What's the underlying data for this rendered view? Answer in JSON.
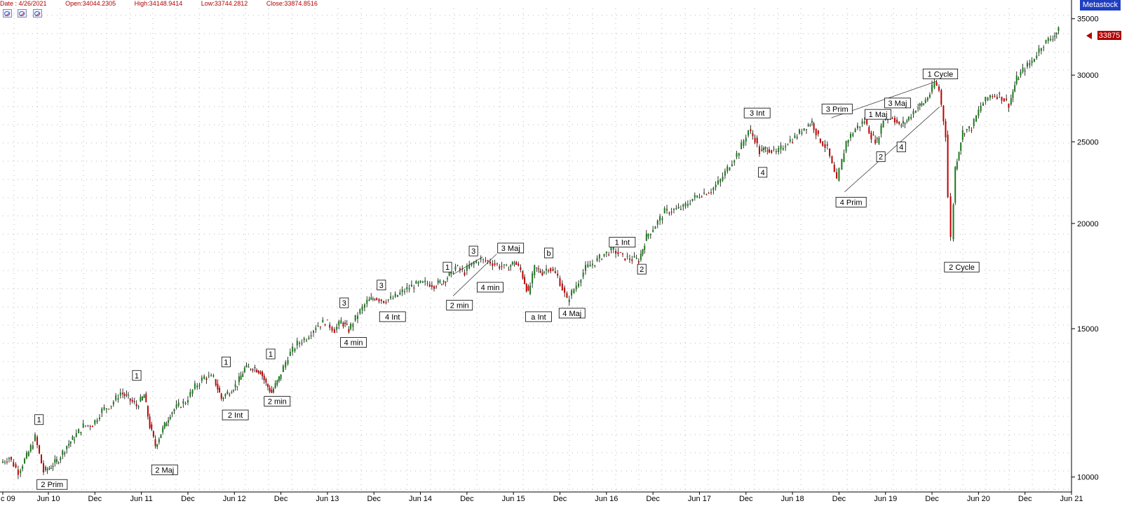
{
  "header": {
    "date": "Date : 4/26/2021",
    "open": "Open:34044.2305",
    "high": "High:34148.9414",
    "low": "Low:33744.2812",
    "close": "Close:33874.8516"
  },
  "brand": "Metastock",
  "price_tag": "33875",
  "colors": {
    "up": "#1a7a1a",
    "down": "#c00000",
    "label_text": "#b00000",
    "grid": "#b8b8b8",
    "brand_bg": "#1f3fbf"
  },
  "chart_data": {
    "type": "line",
    "title": "",
    "xlabel": "",
    "ylabel": "",
    "y_scale": "log",
    "ylim": [
      9600,
      36000
    ],
    "xlim": [
      2009.96,
      2021.45
    ],
    "grid": true,
    "x_ticks": [
      {
        "t": 2009.96,
        "label": "c 09"
      },
      {
        "t": 2010.45,
        "label": "Jun 10"
      },
      {
        "t": 2010.95,
        "label": "Dec"
      },
      {
        "t": 2011.45,
        "label": "Jun 11"
      },
      {
        "t": 2011.95,
        "label": "Dec"
      },
      {
        "t": 2012.45,
        "label": "Jun 12"
      },
      {
        "t": 2012.95,
        "label": "Dec"
      },
      {
        "t": 2013.45,
        "label": "Jun 13"
      },
      {
        "t": 2013.95,
        "label": "Dec"
      },
      {
        "t": 2014.45,
        "label": "Jun 14"
      },
      {
        "t": 2014.95,
        "label": "Dec"
      },
      {
        "t": 2015.45,
        "label": "Jun 15"
      },
      {
        "t": 2015.95,
        "label": "Dec"
      },
      {
        "t": 2016.45,
        "label": "Jun 16"
      },
      {
        "t": 2016.95,
        "label": "Dec"
      },
      {
        "t": 2017.45,
        "label": "Jun 17"
      },
      {
        "t": 2017.95,
        "label": "Dec"
      },
      {
        "t": 2018.45,
        "label": "Jun 18"
      },
      {
        "t": 2018.95,
        "label": "Dec"
      },
      {
        "t": 2019.45,
        "label": "Jun 19"
      },
      {
        "t": 2019.95,
        "label": "Dec"
      },
      {
        "t": 2020.45,
        "label": "Jun 20"
      },
      {
        "t": 2020.95,
        "label": "Dec"
      },
      {
        "t": 2021.45,
        "label": "Jun 21"
      }
    ],
    "y_ticks": [
      {
        "v": 10000,
        "label": "10000"
      },
      {
        "v": 15000,
        "label": "15000"
      },
      {
        "v": 20000,
        "label": "20000"
      },
      {
        "v": 25000,
        "label": "25000"
      },
      {
        "v": 30000,
        "label": "30000"
      },
      {
        "v": 35000,
        "label": "35000"
      }
    ],
    "series": [
      {
        "x": [
          2009.96,
          2010.05,
          2010.15,
          2010.26,
          2010.33,
          2010.42,
          2010.5,
          2010.58,
          2010.67,
          2010.75,
          2010.85,
          2010.95,
          2011.05,
          2011.15,
          2011.25,
          2011.33,
          2011.42,
          2011.5,
          2011.56,
          2011.62,
          2011.7,
          2011.78,
          2011.85,
          2011.95,
          2012.05,
          2012.15,
          2012.25,
          2012.33,
          2012.42,
          2012.5,
          2012.58,
          2012.67,
          2012.75,
          2012.81,
          2012.87,
          2012.95,
          2013.05,
          2013.15,
          2013.25,
          2013.35,
          2013.45,
          2013.55,
          2013.62,
          2013.7,
          2013.8,
          2013.9,
          2013.98,
          2014.08,
          2014.18,
          2014.28,
          2014.38,
          2014.45,
          2014.55,
          2014.62,
          2014.7,
          2014.78,
          2014.85,
          2014.95,
          2015.0,
          2015.1,
          2015.2,
          2015.3,
          2015.4,
          2015.48,
          2015.55,
          2015.63,
          2015.7,
          2015.78,
          2015.85,
          2015.95,
          2016.05,
          2016.15,
          2016.25,
          2016.35,
          2016.45,
          2016.55,
          2016.65,
          2016.75,
          2016.82,
          2016.9,
          2017.0,
          2017.1,
          2017.2,
          2017.3,
          2017.4,
          2017.5,
          2017.6,
          2017.7,
          2017.8,
          2017.9,
          2018.0,
          2018.07,
          2018.12,
          2018.2,
          2018.3,
          2018.4,
          2018.5,
          2018.6,
          2018.68,
          2018.75,
          2018.85,
          2018.95,
          2018.98,
          2019.05,
          2019.15,
          2019.25,
          2019.32,
          2019.38,
          2019.45,
          2019.55,
          2019.62,
          2019.7,
          2019.8,
          2019.88,
          2019.95,
          2020.0,
          2020.05,
          2020.12,
          2020.15,
          2020.18,
          2020.22,
          2020.3,
          2020.4,
          2020.5,
          2020.6,
          2020.7,
          2020.8,
          2020.88,
          2020.95,
          2021.05,
          2021.15,
          2021.25,
          2021.33
        ],
        "values": [
          10400,
          10550,
          10150,
          10700,
          11150,
          10150,
          10300,
          10500,
          10900,
          11150,
          11500,
          11550,
          12000,
          12200,
          12600,
          12400,
          12150,
          12500,
          11500,
          10900,
          11400,
          11900,
          12100,
          12300,
          12800,
          13150,
          13100,
          12400,
          12650,
          12900,
          13450,
          13500,
          13350,
          12900,
          12600,
          13100,
          13900,
          14400,
          14650,
          15100,
          15300,
          14950,
          15300,
          14950,
          15600,
          16150,
          16350,
          16200,
          16300,
          16600,
          16850,
          16950,
          17000,
          16900,
          17050,
          17350,
          17750,
          17500,
          17800,
          18100,
          18050,
          17850,
          17700,
          18000,
          17600,
          16500,
          17700,
          17500,
          17750,
          17300,
          16200,
          16900,
          17700,
          18000,
          18400,
          18600,
          18250,
          18150,
          18100,
          19300,
          19900,
          20650,
          20750,
          20900,
          21400,
          21700,
          21900,
          22500,
          23500,
          24400,
          25800,
          25200,
          24300,
          24600,
          24200,
          24900,
          25300,
          26000,
          26400,
          25300,
          24500,
          22400,
          23100,
          25000,
          25900,
          26500,
          25400,
          25000,
          26600,
          26800,
          26100,
          26500,
          27400,
          27800,
          28500,
          29400,
          28800,
          25500,
          21500,
          19200,
          23300,
          25700,
          26000,
          27600,
          28400,
          28400,
          27700,
          29700,
          30400,
          31200,
          32500,
          33200,
          33875
        ]
      }
    ],
    "annotations": [
      {
        "text": "1",
        "t": 2010.35,
        "v": 11700,
        "box": true
      },
      {
        "text": "2 Prim",
        "t": 2010.49,
        "v": 9800,
        "box": true
      },
      {
        "text": "1",
        "t": 2011.4,
        "v": 13200,
        "box": true
      },
      {
        "text": "2 Maj",
        "t": 2011.7,
        "v": 10200,
        "box": true
      },
      {
        "text": "1",
        "t": 2012.36,
        "v": 13700,
        "box": true
      },
      {
        "text": "2 Int",
        "t": 2012.46,
        "v": 11850,
        "box": true
      },
      {
        "text": "1",
        "t": 2012.84,
        "v": 14000,
        "box": true
      },
      {
        "text": "2 min",
        "t": 2012.91,
        "v": 12300,
        "box": true
      },
      {
        "text": "3",
        "t": 2013.63,
        "v": 16100,
        "box": true
      },
      {
        "text": "4 min",
        "t": 2013.73,
        "v": 14450,
        "box": true
      },
      {
        "text": "3",
        "t": 2014.03,
        "v": 16900,
        "box": true
      },
      {
        "text": "4 Int",
        "t": 2014.15,
        "v": 15500,
        "box": true
      },
      {
        "text": "1",
        "t": 2014.74,
        "v": 17750,
        "box": true
      },
      {
        "text": "2 min",
        "t": 2014.87,
        "v": 16000,
        "box": true
      },
      {
        "text": "3",
        "t": 2015.02,
        "v": 18550,
        "box": true
      },
      {
        "text": "4 min",
        "t": 2015.2,
        "v": 16800,
        "box": true
      },
      {
        "text": "3 Maj",
        "t": 2015.42,
        "v": 18700,
        "box": true
      },
      {
        "text": "b",
        "t": 2015.83,
        "v": 18450,
        "box": true
      },
      {
        "text": "a Int",
        "t": 2015.72,
        "v": 15500,
        "box": true
      },
      {
        "text": "4 Maj",
        "t": 2016.08,
        "v": 15650,
        "box": true
      },
      {
        "text": "1 Int",
        "t": 2016.62,
        "v": 19000,
        "box": true
      },
      {
        "text": "2",
        "t": 2016.83,
        "v": 17650,
        "box": true
      },
      {
        "text": "3 Int",
        "t": 2018.07,
        "v": 27050,
        "box": true
      },
      {
        "text": "4",
        "t": 2018.13,
        "v": 23000,
        "box": true
      },
      {
        "text": "3 Prim",
        "t": 2018.93,
        "v": 27350,
        "box": true
      },
      {
        "text": "4 Prim",
        "t": 2019.08,
        "v": 21200,
        "box": true
      },
      {
        "text": "1 Maj",
        "t": 2019.37,
        "v": 26950,
        "box": true
      },
      {
        "text": "2",
        "t": 2019.4,
        "v": 24000,
        "box": true
      },
      {
        "text": "3 Maj",
        "t": 2019.58,
        "v": 27800,
        "box": true
      },
      {
        "text": "4",
        "t": 2019.62,
        "v": 24650,
        "box": true
      },
      {
        "text": "1 Cycle",
        "t": 2020.04,
        "v": 30100,
        "box": true
      },
      {
        "text": "2 Cycle",
        "t": 2020.27,
        "v": 17750,
        "box": true
      }
    ],
    "trendlines": [
      {
        "t1": 2014.8,
        "v1": 16400,
        "t2": 2015.27,
        "v2": 18400
      },
      {
        "t1": 2014.8,
        "v1": 17400,
        "t2": 2015.12,
        "v2": 18250
      },
      {
        "t1": 2018.87,
        "v1": 26700,
        "t2": 2020.0,
        "v2": 29500
      },
      {
        "t1": 2019.01,
        "v1": 21800,
        "t2": 2020.03,
        "v2": 27500
      }
    ]
  }
}
